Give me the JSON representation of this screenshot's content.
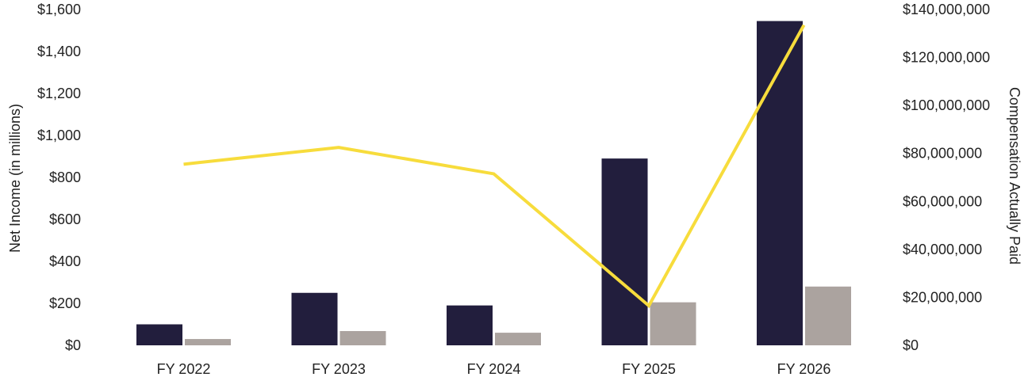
{
  "chart_data": {
    "type": "bar",
    "categories": [
      "FY 2022",
      "FY 2023",
      "FY 2024",
      "FY 2025",
      "FY 2026"
    ],
    "left_axis": {
      "label": "Net Income (in millions)",
      "ylim": [
        0,
        1600
      ],
      "ticks": [
        "$0",
        "$200",
        "$400",
        "$600",
        "$800",
        "$1,000",
        "$1,200",
        "$1,400",
        "$1,600"
      ]
    },
    "right_axis": {
      "label": "Compensation Actually Paid",
      "ylim": [
        0,
        140000000
      ],
      "ticks": [
        "$0",
        "$20,000,000",
        "$40,000,000",
        "$60,000,000",
        "$80,000,000",
        "$100,000,000",
        "$120,000,000",
        "$140,000,000"
      ]
    },
    "series": [
      {
        "kind": "bar",
        "axis": "left",
        "color": "#221e3d",
        "values": [
          100,
          250,
          190,
          890,
          1545
        ]
      },
      {
        "kind": "bar",
        "axis": "left",
        "color": "#aba39f",
        "values": [
          30,
          68,
          60,
          205,
          280
        ]
      },
      {
        "kind": "line",
        "axis": "right",
        "color": "#f7dc3c",
        "values": [
          75500000,
          82500000,
          71500000,
          16500000,
          133500000
        ]
      }
    ],
    "grid": false,
    "legend": "none"
  }
}
